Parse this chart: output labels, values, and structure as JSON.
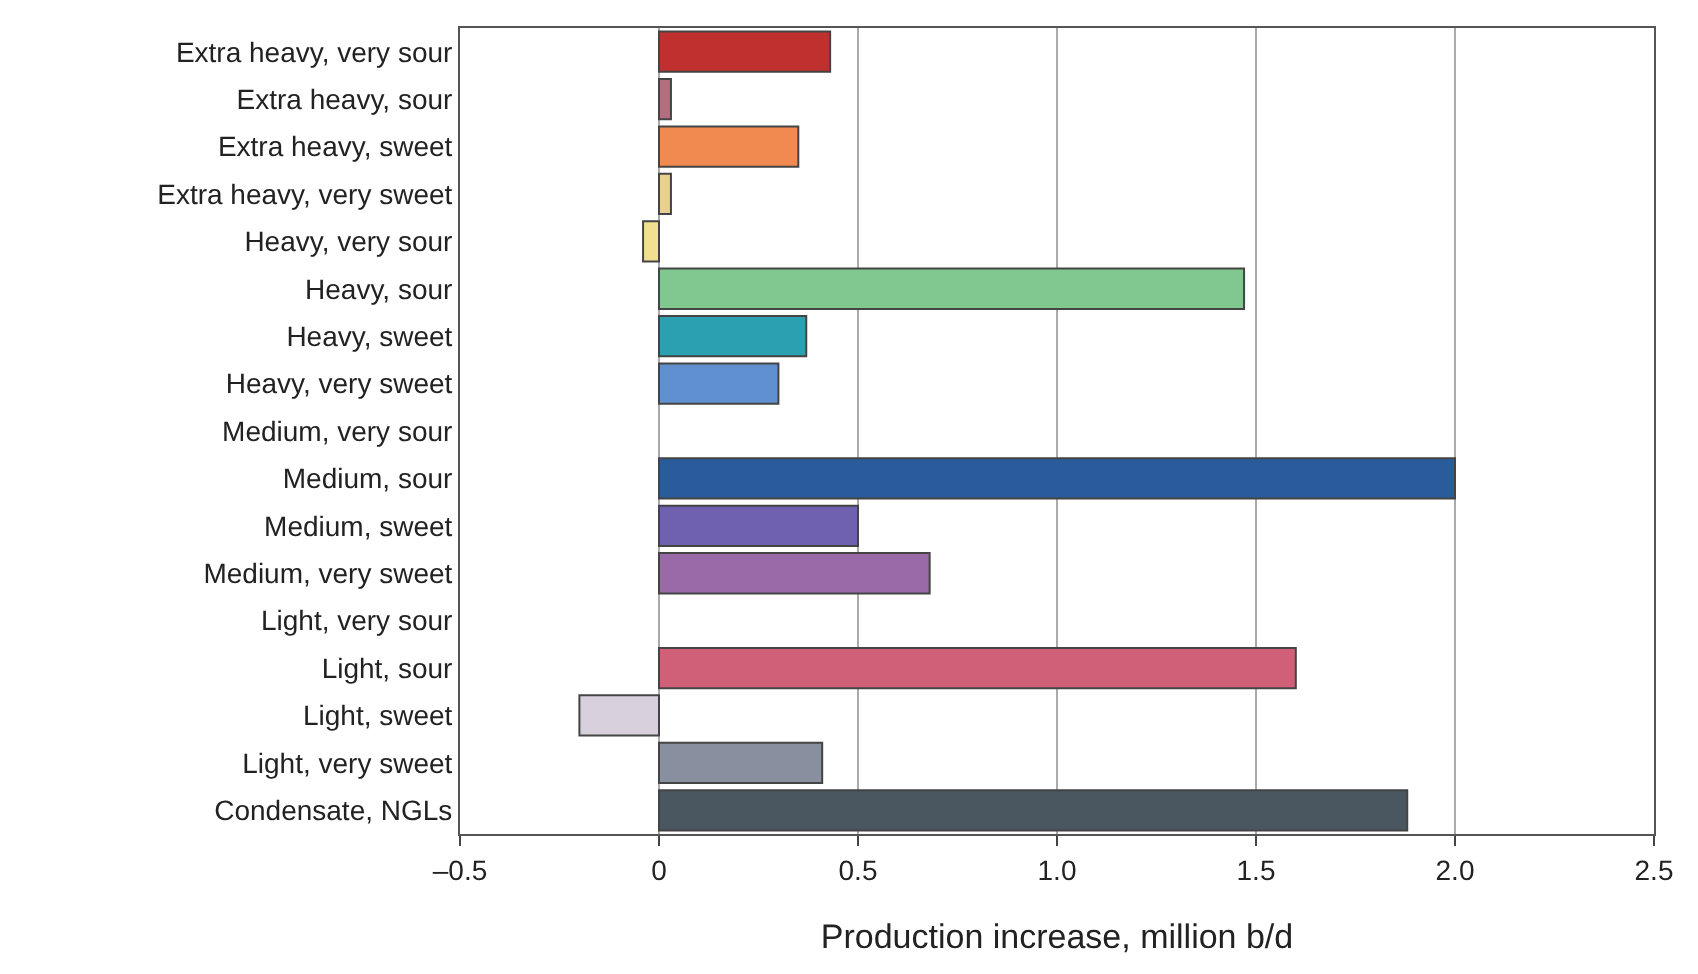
{
  "chart_data": {
    "type": "bar",
    "orientation": "horizontal",
    "xlabel": "Production increase, million b/d",
    "categories": [
      "Extra heavy, very sour",
      "Extra heavy, sour",
      "Extra heavy, sweet",
      "Extra heavy, very sweet",
      "Heavy, very sour",
      "Heavy, sour",
      "Heavy, sweet",
      "Heavy, very sweet",
      "Medium, very sour",
      "Medium, sour",
      "Medium, sweet",
      "Medium, very sweet",
      "Light, very sour",
      "Light, sour",
      "Light, sweet",
      "Light, very sweet",
      "Condensate, NGLs"
    ],
    "values": [
      0.43,
      0.03,
      0.35,
      0.03,
      -0.04,
      1.47,
      0.37,
      0.3,
      null,
      2.0,
      0.5,
      0.68,
      null,
      1.6,
      -0.2,
      0.41,
      1.88
    ],
    "colors": [
      "#c0302e",
      "#b07080",
      "#f08a50",
      "#e8d090",
      "#f0e090",
      "#80c890",
      "#2aa0b0",
      "#6090d0",
      "#3060a0",
      "#2a5c9c",
      "#7060b0",
      "#9a6aa8",
      "#c06070",
      "#d06078",
      "#d8d0dc",
      "#8890a0",
      "#4a5660"
    ],
    "xlim": [
      -0.5,
      2.5
    ],
    "xticks": [
      {
        "value": -0.5,
        "label": "–0.5"
      },
      0,
      0.5,
      {
        "value": 1,
        "label": "1.0"
      },
      1.5,
      {
        "value": 2,
        "label": "2.0"
      },
      2.5
    ],
    "grid": "x"
  }
}
